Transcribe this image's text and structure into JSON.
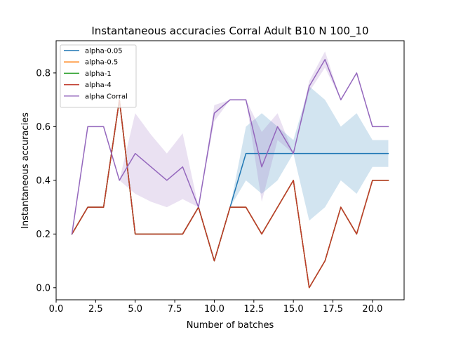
{
  "chart_data": {
    "type": "line",
    "title": "Instantaneous accuracies Corral Adult B10 N 100_10",
    "xlabel": "Number of batches",
    "ylabel": "Instantaneous accuracies",
    "xlim": [
      0.0,
      22.0
    ],
    "ylim": [
      -0.045,
      0.92
    ],
    "xticks": [
      0.0,
      2.5,
      5.0,
      7.5,
      10.0,
      12.5,
      15.0,
      17.5,
      20.0
    ],
    "xtick_labels": [
      "0.0",
      "2.5",
      "5.0",
      "7.5",
      "10.0",
      "12.5",
      "15.0",
      "17.5",
      "20.0"
    ],
    "yticks": [
      0.0,
      0.2,
      0.4,
      0.6,
      0.8
    ],
    "ytick_labels": [
      "0.0",
      "0.2",
      "0.4",
      "0.6",
      "0.8"
    ],
    "grid": false,
    "legend_position": "top-left",
    "x": [
      1,
      2,
      3,
      4,
      5,
      6,
      7,
      8,
      9,
      10,
      11,
      12,
      13,
      14,
      15,
      16,
      17,
      18,
      19,
      20,
      21
    ],
    "series": [
      {
        "name": "alpha-0.05",
        "color": "#1f77b4",
        "values": [
          0.2,
          0.3,
          0.3,
          0.7,
          0.2,
          0.2,
          0.2,
          0.2,
          0.3,
          0.1,
          0.3,
          0.5,
          0.5,
          0.5,
          0.5,
          0.5,
          0.5,
          0.5,
          0.5,
          0.5,
          0.5
        ],
        "band_lower": [
          0.2,
          0.3,
          0.3,
          0.7,
          0.2,
          0.2,
          0.2,
          0.2,
          0.3,
          0.1,
          0.3,
          0.4,
          0.35,
          0.4,
          0.5,
          0.25,
          0.3,
          0.4,
          0.35,
          0.45,
          0.45
        ],
        "band_upper": [
          0.2,
          0.3,
          0.3,
          0.7,
          0.2,
          0.2,
          0.2,
          0.2,
          0.3,
          0.1,
          0.3,
          0.6,
          0.65,
          0.6,
          0.55,
          0.75,
          0.7,
          0.6,
          0.65,
          0.55,
          0.55
        ]
      },
      {
        "name": "alpha-0.5",
        "color": "#ff7f0e",
        "values": [
          0.2,
          0.3,
          0.3,
          0.7,
          0.2,
          0.2,
          0.2,
          0.2,
          0.3,
          0.1,
          0.3,
          0.3,
          0.2,
          0.3,
          0.4,
          0.0,
          0.1,
          0.3,
          0.2,
          0.4,
          0.4
        ]
      },
      {
        "name": "alpha-1",
        "color": "#2ca02c",
        "values": [
          0.2,
          0.3,
          0.3,
          0.7,
          0.2,
          0.2,
          0.2,
          0.2,
          0.3,
          0.1,
          0.3,
          0.3,
          0.2,
          0.3,
          0.4,
          0.0,
          0.1,
          0.3,
          0.2,
          0.4,
          0.4
        ]
      },
      {
        "name": "alpha-4",
        "color": "#c0392b",
        "values": [
          0.2,
          0.3,
          0.3,
          0.7,
          0.2,
          0.2,
          0.2,
          0.2,
          0.3,
          0.1,
          0.3,
          0.3,
          0.2,
          0.3,
          0.4,
          0.0,
          0.1,
          0.3,
          0.2,
          0.4,
          0.4
        ]
      },
      {
        "name": "alpha Corral",
        "color": "#9467bd",
        "values": [
          0.2,
          0.6,
          0.6,
          0.4,
          0.5,
          0.45,
          0.4,
          0.45,
          0.3,
          0.65,
          0.7,
          0.7,
          0.45,
          0.6,
          0.5,
          0.75,
          0.85,
          0.7,
          0.8,
          0.6,
          0.6
        ],
        "band_lower": [
          0.2,
          0.6,
          0.6,
          0.4,
          0.35,
          0.32,
          0.3,
          0.33,
          0.3,
          0.62,
          0.7,
          0.7,
          0.32,
          0.55,
          0.5,
          0.73,
          0.82,
          0.7,
          0.8,
          0.6,
          0.6
        ],
        "band_upper": [
          0.2,
          0.6,
          0.6,
          0.4,
          0.65,
          0.57,
          0.5,
          0.575,
          0.3,
          0.68,
          0.7,
          0.7,
          0.58,
          0.65,
          0.5,
          0.77,
          0.88,
          0.7,
          0.8,
          0.6,
          0.6
        ]
      }
    ]
  }
}
